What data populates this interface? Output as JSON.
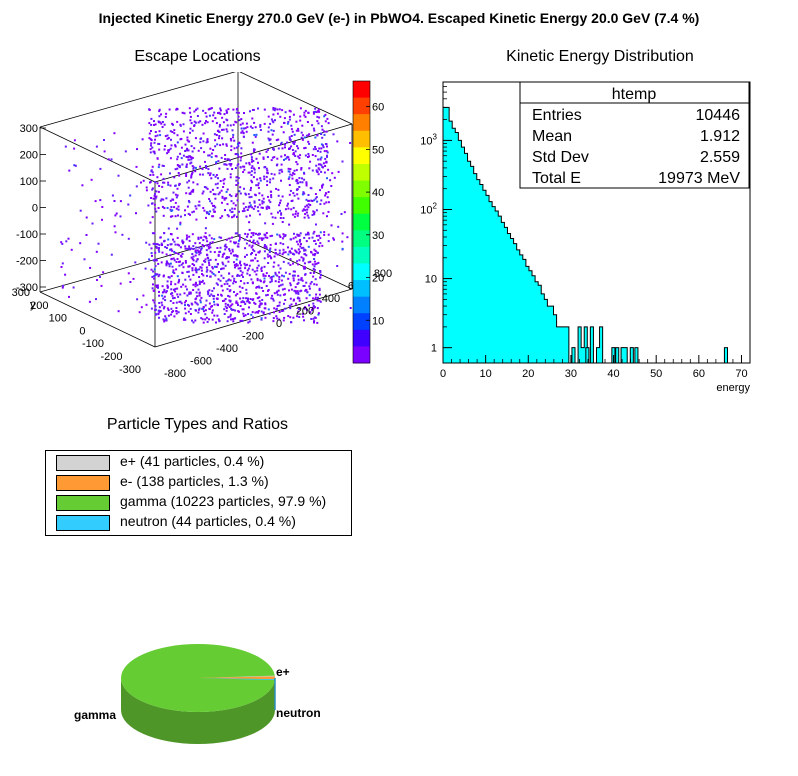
{
  "title": "Injected Kinetic Energy 270.0 GeV (e-) in PbWO4. Escaped Kinetic Energy 20.0 GeV (7.4 %)",
  "pads": {
    "escape": {
      "title": "Escape Locations"
    },
    "energy": {
      "title": "Kinetic Energy Distribution"
    },
    "types": {
      "title": "Particle Types and Ratios"
    }
  },
  "stats_box": {
    "name": "htemp",
    "rows": [
      {
        "label": "Entries",
        "value": "10446"
      },
      {
        "label": "Mean",
        "value": "1.912"
      },
      {
        "label": "Std Dev",
        "value": "2.559"
      },
      {
        "label": "Total E",
        "value": "19973 MeV"
      }
    ]
  },
  "colors": {
    "scatter_point": "#7a00ff",
    "histogram_fill": "#00ffff",
    "histogram_line": "#000000"
  },
  "chart_data": [
    {
      "type": "scatter",
      "title": "Escape Locations",
      "subtype": "3d-scatter",
      "x_axis": {
        "label": "",
        "ticks": [
          "-800",
          "-600",
          "-400",
          "-200",
          "0",
          "200",
          "400",
          "600",
          "800"
        ],
        "range": [
          -900,
          900
        ]
      },
      "y_axis": {
        "label": "y",
        "ticks": [
          "-300",
          "-200",
          "-100",
          "0",
          "100",
          "200",
          "300"
        ],
        "range": [
          -320,
          320
        ]
      },
      "z_axis": {
        "label": "",
        "ticks": [
          "-300",
          "-200",
          "-100",
          "0",
          "100",
          "200",
          "300"
        ],
        "range": [
          -320,
          320
        ]
      },
      "color_scale": {
        "ticks": [
          "10",
          "20",
          "30",
          "40",
          "50",
          "60"
        ],
        "range": [
          0,
          66
        ],
        "palette": "rainbow"
      },
      "distribution": "10446 escape points, densest near faces |y|≈300 and low energy (violet); a few blue/cyan points"
    },
    {
      "type": "bar",
      "subtype": "histogram",
      "title": "Kinetic Energy Distribution",
      "xlabel": "energy",
      "ylabel": "",
      "log_y": true,
      "x_ticks": [
        "0",
        "10",
        "20",
        "30",
        "40",
        "50",
        "60",
        "70"
      ],
      "y_ticks": [
        "1",
        "10",
        "10^2",
        "10^3"
      ],
      "xlim": [
        0,
        72
      ],
      "ylim": [
        0.6,
        7000
      ],
      "bin_width": 0.72,
      "bin_counts": [
        3000,
        3000,
        1900,
        1500,
        1300,
        1000,
        800,
        650,
        500,
        420,
        330,
        270,
        230,
        190,
        160,
        130,
        110,
        95,
        80,
        65,
        55,
        45,
        38,
        32,
        26,
        22,
        19,
        15,
        13,
        11,
        9,
        8,
        6,
        5,
        4,
        4,
        3,
        2,
        2,
        2,
        2,
        0,
        1,
        0,
        2,
        1,
        2,
        0,
        2,
        0,
        1,
        2,
        0,
        0,
        0,
        1,
        0,
        0,
        1,
        1,
        0,
        1,
        0,
        0,
        0,
        0,
        0,
        0,
        0,
        0,
        0,
        0,
        0,
        0,
        0,
        0,
        0,
        0,
        0,
        0,
        0,
        0,
        0,
        0,
        0,
        0,
        0,
        0,
        0,
        0,
        0,
        0,
        0,
        0,
        0,
        0,
        0,
        0,
        0,
        0
      ],
      "extra_bins": [
        {
          "x": 33.5,
          "count": 1
        },
        {
          "x": 40.5,
          "count": 1
        },
        {
          "x": 45.0,
          "count": 1
        },
        {
          "x": 66.0,
          "count": 1
        }
      ]
    },
    {
      "type": "pie",
      "title": "Particle Types and Ratios",
      "slices": [
        {
          "name": "e+",
          "legend": "e+ (41 particles, 0.4 %)",
          "count": 41,
          "percent": 0.4,
          "color": "#d3d3d3"
        },
        {
          "name": "e-",
          "legend": "e- (138 particles, 1.3 %)",
          "count": 138,
          "percent": 1.3,
          "color": "#ff9933"
        },
        {
          "name": "gamma",
          "legend": "gamma (10223 particles, 97.9 %)",
          "count": 10223,
          "percent": 97.9,
          "color": "#66cc33"
        },
        {
          "name": "neutron",
          "legend": "neutron (44 particles, 0.4 %)",
          "count": 44,
          "percent": 0.4,
          "color": "#33ccff"
        }
      ],
      "visible_slice_labels": [
        "e+",
        "gamma",
        "neutron"
      ]
    }
  ]
}
